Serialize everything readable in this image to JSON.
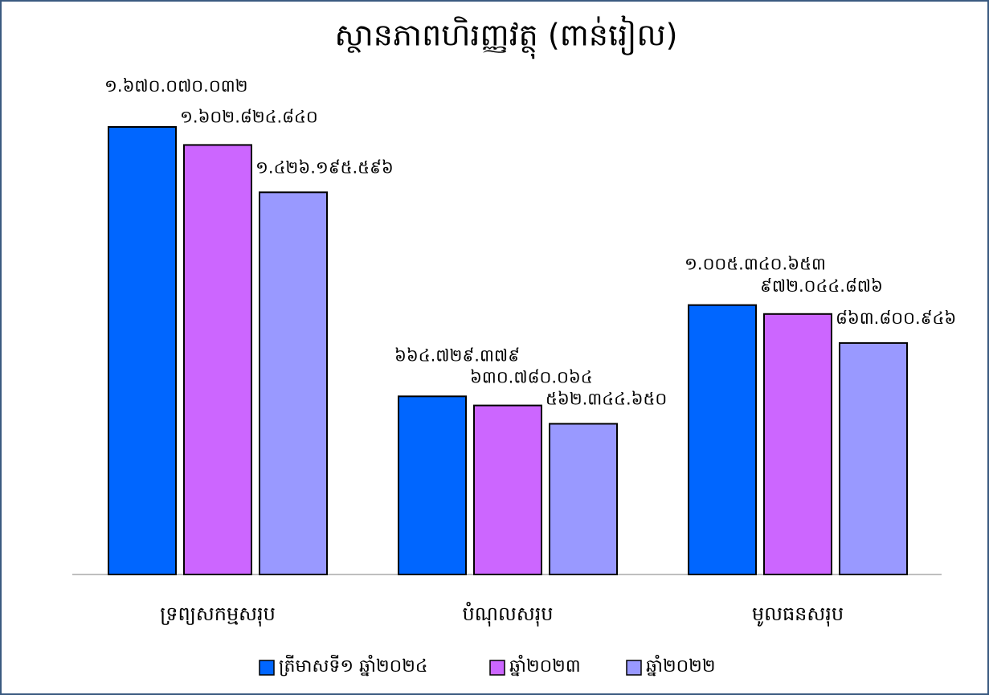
{
  "chart_data": {
    "type": "bar",
    "title": "ស្ថានភាពហិរញ្ញវត្ថុ (ពាន់រៀល)",
    "categories": [
      "ទ្រព្យសកម្មសរុប",
      "បំណុលសរុប",
      "មូលធនសរុប"
    ],
    "series": [
      {
        "name": "ត្រីមាសទី១ ឆ្នាំ២០២៤",
        "color": "#0066ff",
        "values": [
          1670070032,
          664729379,
          1005340653
        ],
        "value_labels": [
          "១.៦៧០.០៧០.០៣២",
          "៦៦៤.៧២៩.៣៧៩",
          "១.០០៥.៣៤០.៦៥៣"
        ]
      },
      {
        "name": "ឆ្នាំ២០២៣",
        "color": "#cc66ff",
        "values": [
          1602824840,
          630780064,
          972044876
        ],
        "value_labels": [
          "១.៦០២.៨២៤.៨៤០",
          "៦៣០.៧៨០.០៦៤",
          "៩៧២.០៤៤.៨៧៦"
        ]
      },
      {
        "name": "ឆ្នាំ២០២២",
        "color": "#9999ff",
        "values": [
          1426195596,
          562344650,
          863800946
        ],
        "value_labels": [
          "១.៤២៦.១៩៥.៥៩៦",
          "៥៦២.៣៤៤.៦៥០",
          "៨៦៣.៨០០.៩៤៦"
        ]
      }
    ]
  }
}
